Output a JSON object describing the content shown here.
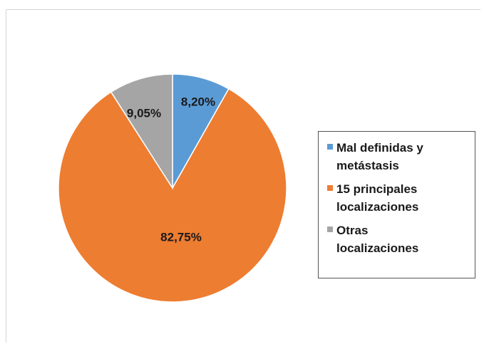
{
  "chart_data": {
    "type": "pie",
    "slices": [
      {
        "label": "Mal definidas y\nmetástasis",
        "value": 8.2,
        "value_label": "8,20%",
        "color": "#5b9bd5"
      },
      {
        "label": "15 principales\nlocalizaciones",
        "value": 82.75,
        "value_label": "82,75%",
        "color": "#ed7d31"
      },
      {
        "label": "Otras\nlocalizaciones",
        "value": 9.05,
        "value_label": "9,05%",
        "color": "#a5a5a5"
      }
    ],
    "start_angle": "12 o'clock",
    "direction": "clockwise",
    "legend_position": "right"
  }
}
